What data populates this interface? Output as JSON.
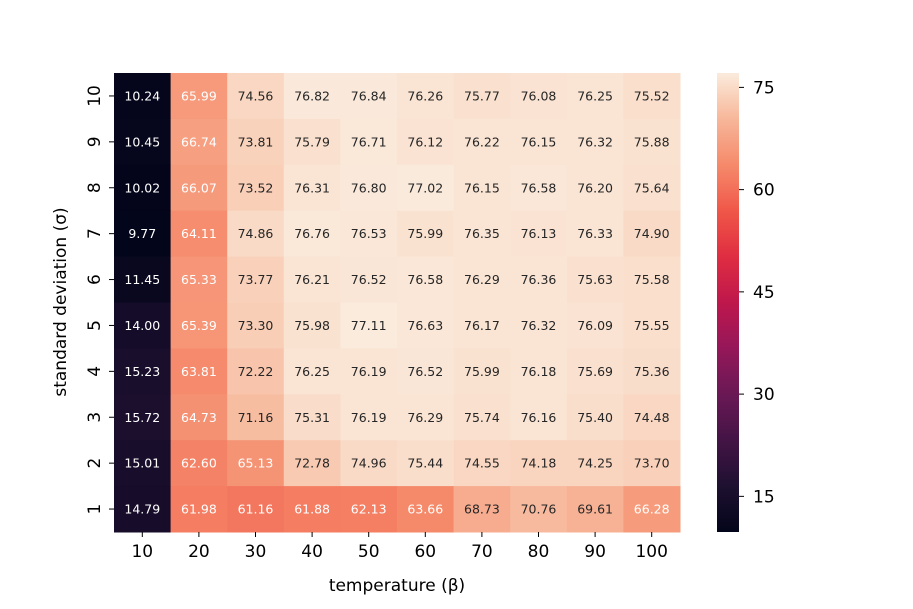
{
  "chart_data": {
    "type": "heatmap",
    "xlabel": "temperature (β)",
    "ylabel": "standard deviation (σ)",
    "x_categories": [
      "10",
      "20",
      "30",
      "40",
      "50",
      "60",
      "70",
      "80",
      "90",
      "100"
    ],
    "y_categories": [
      "10",
      "9",
      "8",
      "7",
      "6",
      "5",
      "4",
      "3",
      "2",
      "1"
    ],
    "values": [
      [
        "10.24",
        "65.99",
        "74.56",
        "76.82",
        "76.84",
        "76.26",
        "75.77",
        "76.08",
        "76.25",
        "75.52"
      ],
      [
        "10.45",
        "66.74",
        "73.81",
        "75.79",
        "76.71",
        "76.12",
        "76.22",
        "76.15",
        "76.32",
        "75.88"
      ],
      [
        "10.02",
        "66.07",
        "73.52",
        "76.31",
        "76.80",
        "77.02",
        "76.15",
        "76.58",
        "76.20",
        "75.64"
      ],
      [
        "9.77",
        "64.11",
        "74.86",
        "76.76",
        "76.53",
        "75.99",
        "76.35",
        "76.13",
        "76.33",
        "74.90"
      ],
      [
        "11.45",
        "65.33",
        "73.77",
        "76.21",
        "76.52",
        "76.58",
        "76.29",
        "76.36",
        "75.63",
        "75.58"
      ],
      [
        "14.00",
        "65.39",
        "73.30",
        "75.98",
        "77.11",
        "76.63",
        "76.17",
        "76.32",
        "76.09",
        "75.55"
      ],
      [
        "15.23",
        "63.81",
        "72.22",
        "76.25",
        "76.19",
        "76.52",
        "75.99",
        "76.18",
        "75.69",
        "75.36"
      ],
      [
        "15.72",
        "64.73",
        "71.16",
        "75.31",
        "76.19",
        "76.29",
        "75.74",
        "76.16",
        "75.40",
        "74.48"
      ],
      [
        "15.01",
        "62.60",
        "65.13",
        "72.78",
        "74.96",
        "75.44",
        "74.55",
        "74.18",
        "74.25",
        "73.70"
      ],
      [
        "14.79",
        "61.98",
        "61.16",
        "61.88",
        "62.13",
        "63.66",
        "68.73",
        "70.76",
        "69.61",
        "66.28"
      ]
    ],
    "colorbar": {
      "colormap": "rocket",
      "min": 9.77,
      "max": 77.11,
      "ticks": [
        "15",
        "30",
        "45",
        "60",
        "75"
      ]
    }
  }
}
